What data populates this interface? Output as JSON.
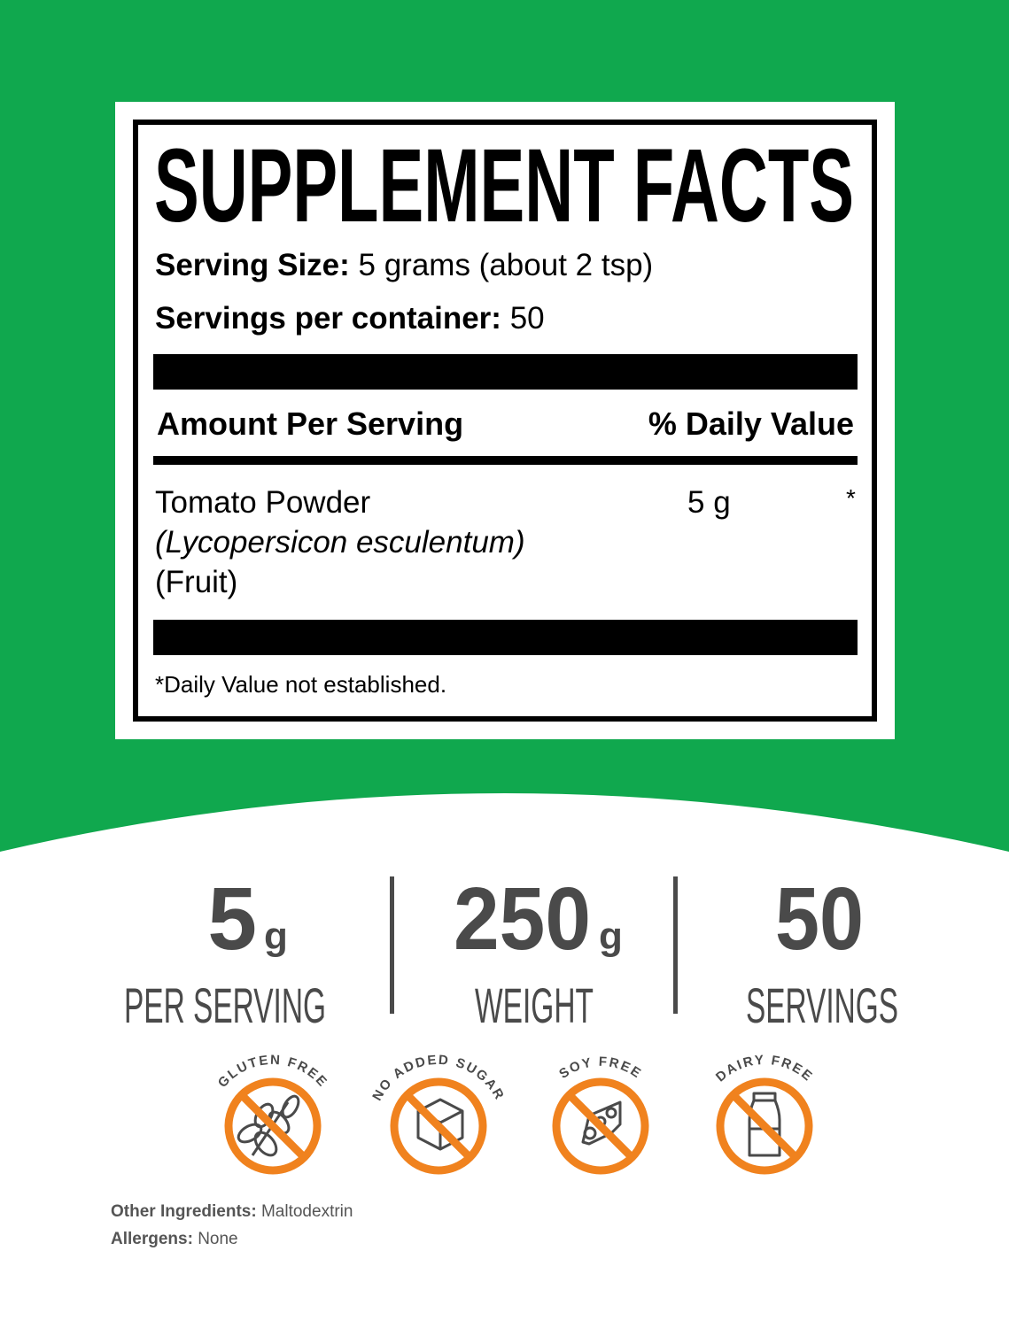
{
  "colors": {
    "background_green": "#10a84e",
    "badge_orange": "#f0821e",
    "stat_gray": "#4a4a4a"
  },
  "label": {
    "title": "SUPPLEMENT FACTS",
    "serving_size_label": "Serving Size:",
    "serving_size_value": "5 grams (about 2 tsp)",
    "servings_per_container_label": "Servings per container:",
    "servings_per_container_value": "50",
    "amount_header": "Amount Per Serving",
    "dv_header": "% Daily Value",
    "ingredient": {
      "name": "Tomato Powder",
      "latin": "(Lycopersicon esculentum)",
      "part": "(Fruit)",
      "amount": "5 g",
      "dv": "*"
    },
    "footnote": "*Daily Value not established."
  },
  "stats": [
    {
      "value": "5",
      "unit": "g",
      "label": "PER SERVING"
    },
    {
      "value": "250",
      "unit": "g",
      "label": "WEIGHT"
    },
    {
      "value": "50",
      "unit": "",
      "label": "SERVINGS"
    }
  ],
  "badges": [
    {
      "text": "GLUTEN FREE",
      "icon": "wheat-icon"
    },
    {
      "text": "NO ADDED SUGAR",
      "icon": "sugar-cube-icon"
    },
    {
      "text": "SOY FREE",
      "icon": "soybean-icon"
    },
    {
      "text": "DAIRY FREE",
      "icon": "milk-bottle-icon"
    }
  ],
  "footer": {
    "other_label": "Other Ingredients:",
    "other_value": "Maltodextrin",
    "allergens_label": "Allergens:",
    "allergens_value": "None"
  }
}
